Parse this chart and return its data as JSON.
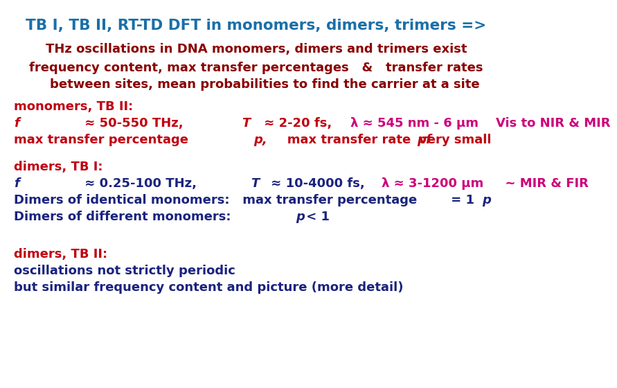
{
  "background_color": "#ffffff",
  "col_blue_title": "#1a6fa8",
  "col_dark_red": "#8b0000",
  "col_red": "#c00010",
  "col_navy": "#1a237e",
  "col_magenta": "#cc007a",
  "fs_title": 15.5,
  "fs": 13.0,
  "title": "TB I, TB II, RT-TD DFT in monomers, dimers, trimers =>",
  "line_thz": "THz oscillations in DNA monomers, dimers and trimers exist",
  "line_freq1": "frequency content, max transfer percentages   &   transfer rates",
  "line_freq2": "    between sites, mean probabilities to find the carrier at a site",
  "label_mono": "monomers, TB II:",
  "line_mono_f_pre": "≈ 50-550 THz,   ",
  "line_mono_f_italic": "f",
  "line_mono_T_pre": " ≈ 2-20 fs,   ",
  "line_mono_T_italic": "T",
  "line_mono_lam": "λ ≈ 545 nm - 6 μm    Vis to NIR & MIR",
  "line_mono_p1_pre": "max transfer percentage ",
  "line_mono_p1_italic": "p,",
  "line_mono_p1_mid": "   max transfer rate ",
  "line_mono_p1_italic2": "pf",
  "line_mono_p1_post": "    very small",
  "label_dimer1": "dimers, TB I:",
  "line_dim1_f": "≈ 0.25-100 THz,  ",
  "line_dim1_T": " ≈ 10-4000 fs,   ",
  "line_dim1_lam": "λ ≈ 3-1200 μm     ~ MIR & FIR",
  "line_dim1_ident": "Dimers of identical monomers:   max transfer percentage ",
  "line_dim1_ident_p": "p",
  "line_dim1_ident_post": " = 1",
  "line_dim1_diff": "Dimers of different monomers: ",
  "line_dim1_diff_p": "p",
  "line_dim1_diff_post": " < 1",
  "label_dimer2": "dimers, TB II:",
  "line_dim2_1": "oscillations not strictly periodic",
  "line_dim2_2": "but similar frequency content and picture (more detail)"
}
